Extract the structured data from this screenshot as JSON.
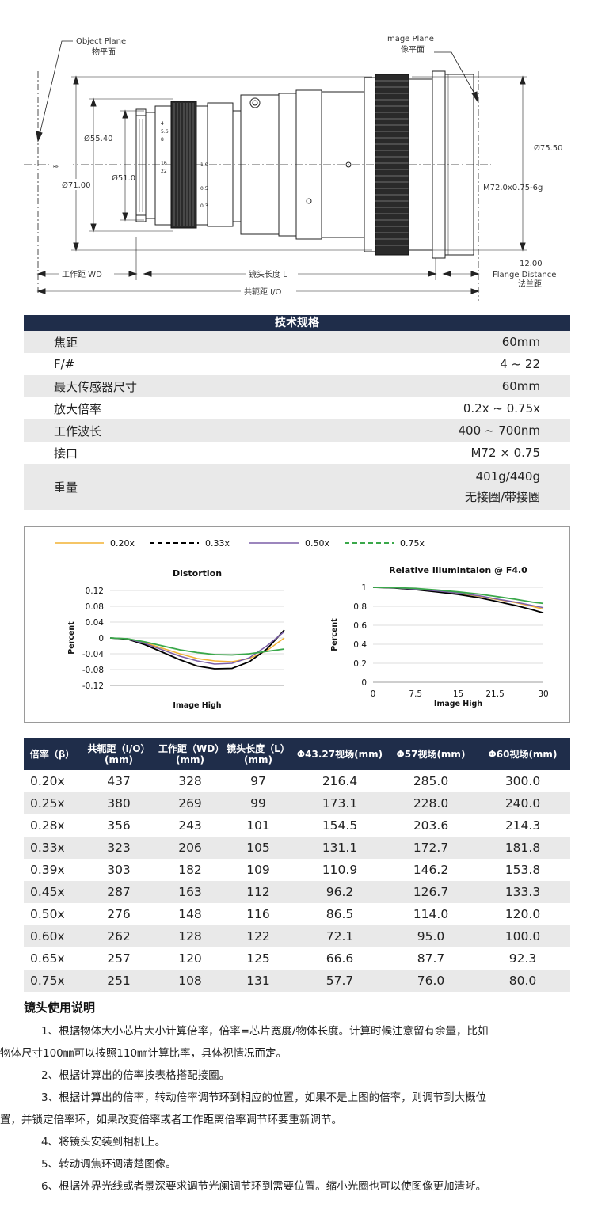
{
  "drawing": {
    "object_plane": "Object Plane",
    "object_plane_cn": "物平面",
    "image_plane": "Image Plane",
    "image_plane_cn": "像平面",
    "dim_55": "Ø55.40",
    "dim_51": "Ø51.0",
    "dim_71": "Ø71.00",
    "dim_7550": "Ø75.50",
    "thread": "M72.0x0.75-6g",
    "flange_value": "12.00",
    "flange_label": "Flange Distance",
    "flange_cn": "法兰距",
    "wd_label": "工作距 WD",
    "length_label": "镜头长度 L",
    "io_label": "共轭距 I/O",
    "approx": "≈"
  },
  "spec": {
    "title": "技术规格",
    "rows": [
      {
        "label": "焦距",
        "value": "60mm"
      },
      {
        "label": "F/#",
        "value": "4 ~ 22"
      },
      {
        "label": "最大传感器尺寸",
        "value": "60mm"
      },
      {
        "label": "放大倍率",
        "value": "0.2x ~ 0.75x"
      },
      {
        "label": "工作波长",
        "value": "400 ~ 700nm"
      },
      {
        "label": "接口",
        "value": "M72 × 0.75"
      }
    ],
    "weight": {
      "label": "重量",
      "value1": "401g/440g",
      "value2": "无接圈/带接圈"
    }
  },
  "chart_data": [
    {
      "type": "line",
      "title": "Distortion",
      "xlabel": "Image High",
      "ylabel": "Percent",
      "ylim": [
        -0.12,
        0.12
      ],
      "yticks": [
        "0.12",
        "0.08",
        "0.04",
        "0",
        "-0.04",
        "-0.08",
        "-0.12"
      ],
      "x": [
        0,
        0.1,
        0.2,
        0.3,
        0.4,
        0.5,
        0.6,
        0.7,
        0.8,
        0.9,
        1.0
      ],
      "series": [
        {
          "name": "0.20x",
          "color": "#f2b234",
          "dash": "solid",
          "values": [
            0,
            -0.002,
            -0.012,
            -0.026,
            -0.04,
            -0.052,
            -0.058,
            -0.06,
            -0.052,
            -0.032,
            0.0
          ]
        },
        {
          "name": "0.33x",
          "color": "#000000",
          "dash": "dashed",
          "values": [
            0,
            -0.003,
            -0.017,
            -0.036,
            -0.055,
            -0.071,
            -0.078,
            -0.077,
            -0.06,
            -0.028,
            0.02
          ]
        },
        {
          "name": "0.50x",
          "color": "#7b5ea7",
          "dash": "solid",
          "values": [
            0,
            -0.002,
            -0.014,
            -0.03,
            -0.046,
            -0.058,
            -0.066,
            -0.064,
            -0.05,
            -0.02,
            0.016
          ]
        },
        {
          "name": "0.75x",
          "color": "#3aa84a",
          "dash": "dashed",
          "values": [
            0,
            -0.002,
            -0.01,
            -0.02,
            -0.03,
            -0.037,
            -0.042,
            -0.043,
            -0.04,
            -0.034,
            -0.028
          ]
        }
      ]
    },
    {
      "type": "line",
      "title": "Relative Illumintaion @ F4.0",
      "xlabel": "Image High",
      "ylabel": "Percent",
      "xlim": [
        0,
        30
      ],
      "ylim": [
        0,
        1
      ],
      "xticks": [
        "0",
        "7.5",
        "15",
        "21.5",
        "30"
      ],
      "yticks": [
        "1",
        "0.8",
        "0.6",
        "0.4",
        "0.2",
        "0"
      ],
      "x": [
        0,
        3.75,
        7.5,
        11.25,
        15,
        18.75,
        21.5,
        25,
        28,
        30
      ],
      "series": [
        {
          "name": "0.20x",
          "color": "#f2b234",
          "dash": "solid",
          "values": [
            1,
            0.995,
            0.98,
            0.96,
            0.935,
            0.905,
            0.875,
            0.84,
            0.8,
            0.77
          ]
        },
        {
          "name": "0.33x",
          "color": "#000000",
          "dash": "dashed",
          "values": [
            1,
            0.993,
            0.975,
            0.952,
            0.925,
            0.89,
            0.855,
            0.81,
            0.765,
            0.73
          ]
        },
        {
          "name": "0.50x",
          "color": "#7b5ea7",
          "dash": "solid",
          "values": [
            1,
            0.995,
            0.982,
            0.962,
            0.94,
            0.91,
            0.88,
            0.845,
            0.81,
            0.785
          ]
        },
        {
          "name": "0.75x",
          "color": "#3aa84a",
          "dash": "dashed",
          "values": [
            1,
            0.997,
            0.988,
            0.972,
            0.952,
            0.928,
            0.905,
            0.875,
            0.845,
            0.83
          ]
        }
      ]
    }
  ],
  "mag_table": {
    "headers": [
      "倍率（β）",
      "共轭距（I/O）(mm)",
      "工作距（WD）(mm)",
      "镜头长度（L）(mm)",
      "Φ43.27视场(mm)",
      "Φ57视场(mm)",
      "Φ60视场(mm)"
    ],
    "header_lines": [
      [
        "倍率（β）"
      ],
      [
        "共轭距（I/O）",
        "(mm)"
      ],
      [
        "工作距（WD）",
        "(mm)"
      ],
      [
        "镜头长度（L）",
        "(mm)"
      ],
      [
        "Φ43.27视场(mm)"
      ],
      [
        "Φ57视场(mm)"
      ],
      [
        "Φ60视场(mm)"
      ]
    ],
    "rows": [
      [
        "0.20x",
        "437",
        "328",
        "97",
        "216.4",
        "285.0",
        "300.0"
      ],
      [
        "0.25x",
        "380",
        "269",
        "99",
        "173.1",
        "228.0",
        "240.0"
      ],
      [
        "0.28x",
        "356",
        "243",
        "101",
        "154.5",
        "203.6",
        "214.3"
      ],
      [
        "0.33x",
        "323",
        "206",
        "105",
        "131.1",
        "172.7",
        "181.8"
      ],
      [
        "0.39x",
        "303",
        "182",
        "109",
        "110.9",
        "146.2",
        "153.8"
      ],
      [
        "0.45x",
        "287",
        "163",
        "112",
        "96.2",
        "126.7",
        "133.3"
      ],
      [
        "0.50x",
        "276",
        "148",
        "116",
        "86.5",
        "114.0",
        "120.0"
      ],
      [
        "0.60x",
        "262",
        "128",
        "122",
        "72.1",
        "95.0",
        "100.0"
      ],
      [
        "0.65x",
        "257",
        "120",
        "125",
        "66.6",
        "87.7",
        "92.3"
      ],
      [
        "0.75x",
        "251",
        "108",
        "131",
        "57.7",
        "76.0",
        "80.0"
      ]
    ]
  },
  "usage": {
    "title": "镜头使用说明",
    "items": [
      "1、根据物体大小芯片大小计算倍率，倍率=芯片宽度/物体长度。计算时候注意留有余量，比如",
      "物体尺寸100㎜可以按照110㎜计算比率，具体视情况而定。",
      "2、根据计算出的倍率按表格搭配接圈。",
      "3、根据计算出的倍率，转动倍率调节环到相应的位置，如果不是上图的倍率，则调节到大概位",
      "置，并锁定倍率环，如果改变倍率或者工作距离倍率调节环要重新调节。",
      "4、将镜头安装到相机上。",
      "5、转动调焦环调清楚图像。",
      "6、根据外界光线或者景深要求调节光阑调节环到需要位置。缩小光圈也可以使图像更加清晰。"
    ]
  }
}
